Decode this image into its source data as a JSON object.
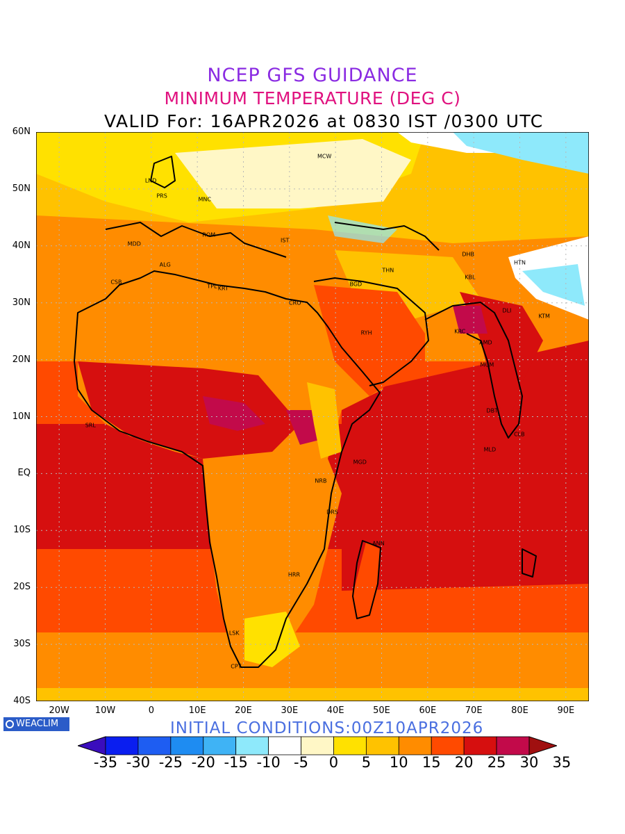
{
  "title": {
    "line1": "NCEP GFS GUIDANCE",
    "line2": "MINIMUM TEMPERATURE (DEG C)",
    "line3": "VALID For: 16APR2026 at 0830 IST /0300 UTC",
    "line1_color": "#8a2be2",
    "line2_color": "#e0117f"
  },
  "initial_conditions": "INITIAL CONDITIONS:00Z10APR2026",
  "initial_color": "#4a6fe0",
  "badge": "WEACLIM",
  "lat_labels": [
    "60N",
    "50N",
    "40N",
    "30N",
    "20N",
    "10N",
    "EQ",
    "10S",
    "20S",
    "30S",
    "40S"
  ],
  "lon_labels": [
    "20W",
    "10W",
    "0",
    "10E",
    "20E",
    "30E",
    "40E",
    "50E",
    "60E",
    "70E",
    "80E",
    "90E"
  ],
  "colorbar": {
    "labels": [
      "-35",
      "-30",
      "-25",
      "-20",
      "-15",
      "-10",
      "-5",
      "0",
      "5",
      "10",
      "15",
      "20",
      "25",
      "30",
      "35"
    ],
    "colors": [
      "#3a0dbd",
      "#0a1ef0",
      "#1e5df2",
      "#1e8cf2",
      "#3fb3f5",
      "#8ee9fb",
      "#ffffff",
      "#fff7c6",
      "#ffe100",
      "#ffc200",
      "#ff8c00",
      "#ff4a00",
      "#d60f0f",
      "#c20a4a",
      "#a01010"
    ]
  },
  "cities": [
    {
      "name": "MCW",
      "lon": 37.6,
      "lat": 55.7
    },
    {
      "name": "LND",
      "lon": -0.1,
      "lat": 51.5
    },
    {
      "name": "PRS",
      "lon": 2.3,
      "lat": 48.8
    },
    {
      "name": "MNC",
      "lon": 11.6,
      "lat": 48.1
    },
    {
      "name": "ROM",
      "lon": 12.5,
      "lat": 41.9
    },
    {
      "name": "MDD",
      "lon": -3.7,
      "lat": 40.4
    },
    {
      "name": "IST",
      "lon": 29.0,
      "lat": 41.0
    },
    {
      "name": "ALG",
      "lon": 3.0,
      "lat": 36.7
    },
    {
      "name": "CSB",
      "lon": -7.6,
      "lat": 33.6
    },
    {
      "name": "TPL",
      "lon": 13.2,
      "lat": 32.9
    },
    {
      "name": "KRT",
      "lon": 15.6,
      "lat": 32.5
    },
    {
      "name": "CRO",
      "lon": 31.2,
      "lat": 30.0
    },
    {
      "name": "BGD",
      "lon": 44.4,
      "lat": 33.3
    },
    {
      "name": "THN",
      "lon": 51.4,
      "lat": 35.7
    },
    {
      "name": "DHB",
      "lon": 68.8,
      "lat": 38.5
    },
    {
      "name": "HTN",
      "lon": 80.0,
      "lat": 37.1
    },
    {
      "name": "KBL",
      "lon": 69.2,
      "lat": 34.5
    },
    {
      "name": "RYH",
      "lon": 46.7,
      "lat": 24.7
    },
    {
      "name": "DLI",
      "lon": 77.2,
      "lat": 28.6
    },
    {
      "name": "KTM",
      "lon": 85.3,
      "lat": 27.7
    },
    {
      "name": "KRC",
      "lon": 67.0,
      "lat": 24.9
    },
    {
      "name": "AMD",
      "lon": 72.6,
      "lat": 23.0
    },
    {
      "name": "MUM",
      "lon": 72.9,
      "lat": 19.1
    },
    {
      "name": "DBT",
      "lon": 74.0,
      "lat": 11.0
    },
    {
      "name": "SRL",
      "lon": -13.2,
      "lat": 8.5
    },
    {
      "name": "MGD",
      "lon": 45.3,
      "lat": 2.0
    },
    {
      "name": "MLD",
      "lon": 73.5,
      "lat": 4.2
    },
    {
      "name": "NRB",
      "lon": 36.8,
      "lat": -1.3
    },
    {
      "name": "DRS",
      "lon": 39.3,
      "lat": -6.8
    },
    {
      "name": "ANN",
      "lon": 49.3,
      "lat": -12.3
    },
    {
      "name": "HRR",
      "lon": 31.0,
      "lat": -17.8
    },
    {
      "name": "LSK",
      "lon": 18.0,
      "lat": -28.0
    },
    {
      "name": "CPT",
      "lon": 18.4,
      "lat": -33.9
    },
    {
      "name": "CLB",
      "lon": 79.9,
      "lat": 6.9
    }
  ]
}
